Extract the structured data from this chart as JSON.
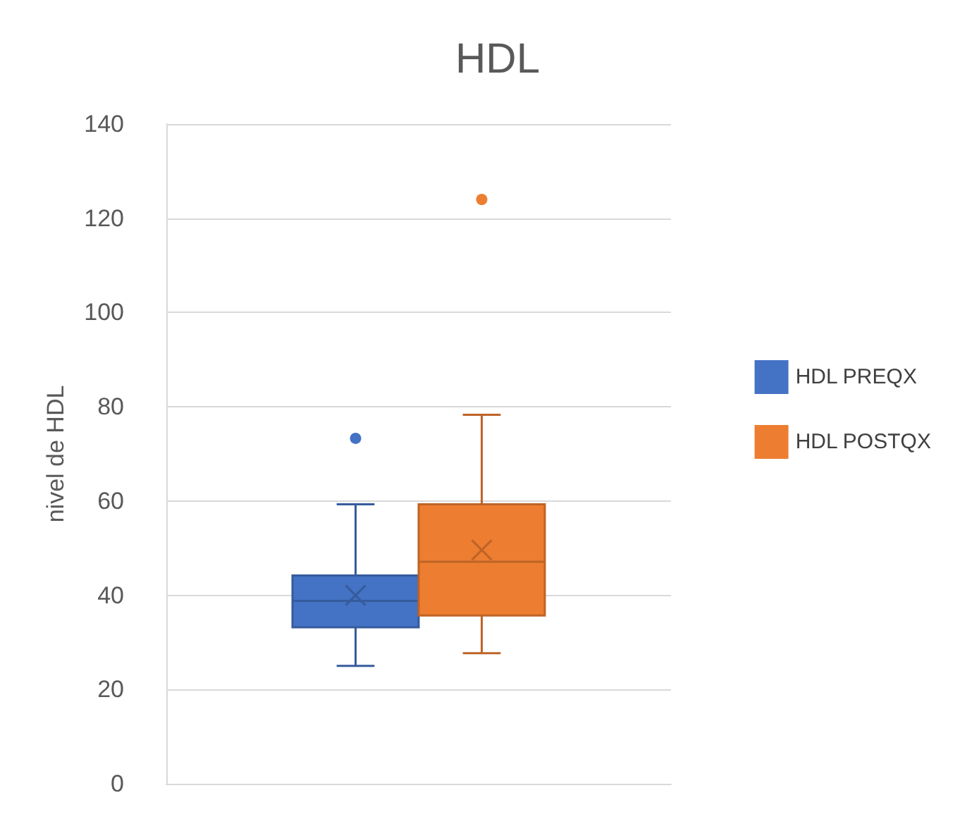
{
  "chart_data": {
    "type": "box",
    "title": "HDL",
    "ylabel": "nivel de HDL",
    "categories": [
      null
    ],
    "ylim": [
      0,
      140
    ],
    "yticks": [
      0,
      20,
      40,
      60,
      80,
      100,
      120,
      140
    ],
    "grid": "y",
    "legend": "right",
    "series": [
      {
        "name": "HDL PREQX",
        "color": "#4472c4",
        "boxes": [
          {
            "low": 25,
            "q1": 33.2,
            "median": 38.8,
            "q3": 44.2,
            "high": 59.3,
            "mean": 40,
            "outliers": [
              73.3
            ]
          }
        ]
      },
      {
        "name": "HDL POSTQX",
        "color": "#ed7d31",
        "boxes": [
          {
            "low": 27.7,
            "q1": 35.7,
            "median": 47.1,
            "q3": 59.3,
            "high": 78.3,
            "mean": 49.6,
            "outliers": [
              124
            ]
          }
        ]
      }
    ]
  }
}
